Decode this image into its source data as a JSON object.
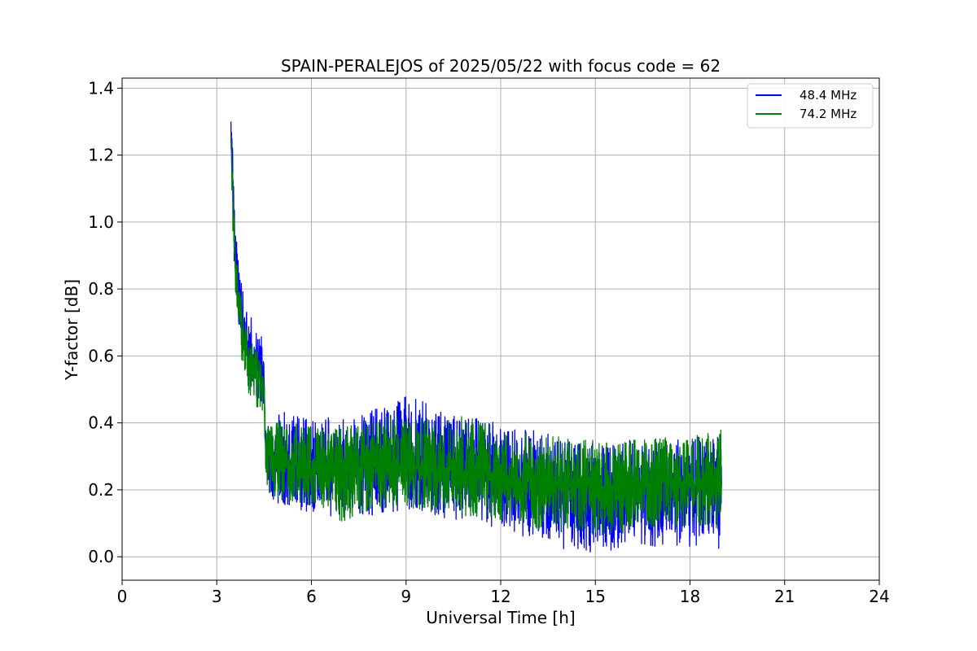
{
  "chart_data": {
    "type": "line",
    "title": "SPAIN-PERALEJOS of 2025/05/22 with focus code = 62",
    "xlabel": "Universal Time [h]",
    "ylabel": "Y-factor [dB]",
    "xlim": [
      0,
      24
    ],
    "ylim": [
      -0.07,
      1.43
    ],
    "xticks": [
      0,
      3,
      6,
      9,
      12,
      15,
      18,
      21,
      24
    ],
    "xtick_labels": [
      "0",
      "3",
      "6",
      "9",
      "12",
      "15",
      "18",
      "21",
      "24"
    ],
    "yticks": [
      0.0,
      0.2,
      0.4,
      0.6,
      0.8,
      1.0,
      1.2,
      1.4
    ],
    "ytick_labels": [
      "0.0",
      "0.2",
      "0.4",
      "0.6",
      "0.8",
      "1.0",
      "1.2",
      "1.4"
    ],
    "grid": true,
    "legend_position": "top-right",
    "series": [
      {
        "name": "48.4 MHz",
        "color": "#0000ff",
        "x": [
          3.45,
          3.5,
          3.55,
          3.6,
          3.7,
          3.8,
          3.9,
          4.0,
          4.1,
          4.2,
          4.3,
          4.4,
          4.5,
          4.55,
          4.6,
          4.8,
          5.0,
          5.5,
          6.0,
          6.5,
          7.0,
          7.5,
          8.0,
          8.5,
          9.0,
          9.5,
          10.0,
          10.5,
          11.0,
          11.5,
          12.0,
          12.5,
          13.0,
          13.5,
          14.0,
          14.5,
          15.0,
          15.5,
          16.0,
          16.5,
          17.0,
          17.5,
          18.0,
          18.5,
          19.0
        ],
        "y_mean": [
          1.3,
          1.15,
          1.0,
          0.9,
          0.8,
          0.72,
          0.66,
          0.62,
          0.6,
          0.58,
          0.56,
          0.55,
          0.54,
          0.3,
          0.29,
          0.28,
          0.28,
          0.27,
          0.27,
          0.27,
          0.26,
          0.27,
          0.27,
          0.27,
          0.28,
          0.28,
          0.27,
          0.26,
          0.26,
          0.25,
          0.24,
          0.23,
          0.22,
          0.21,
          0.2,
          0.2,
          0.19,
          0.19,
          0.2,
          0.2,
          0.2,
          0.2,
          0.2,
          0.2,
          0.21
        ],
        "y_high": [
          1.36,
          1.22,
          1.08,
          0.98,
          0.88,
          0.82,
          0.76,
          0.73,
          0.72,
          0.7,
          0.68,
          0.66,
          0.65,
          0.45,
          0.43,
          0.43,
          0.44,
          0.42,
          0.41,
          0.42,
          0.41,
          0.42,
          0.44,
          0.46,
          0.49,
          0.48,
          0.44,
          0.43,
          0.42,
          0.41,
          0.4,
          0.39,
          0.38,
          0.37,
          0.36,
          0.35,
          0.34,
          0.34,
          0.35,
          0.34,
          0.35,
          0.35,
          0.36,
          0.36,
          0.37
        ],
        "y_low": [
          1.2,
          1.02,
          0.88,
          0.78,
          0.68,
          0.6,
          0.55,
          0.5,
          0.47,
          0.46,
          0.45,
          0.44,
          0.43,
          0.22,
          0.19,
          0.17,
          0.15,
          0.14,
          0.13,
          0.12,
          0.12,
          0.13,
          0.12,
          0.13,
          0.14,
          0.13,
          0.12,
          0.11,
          0.1,
          0.09,
          0.08,
          0.06,
          0.05,
          0.04,
          0.02,
          0.01,
          0.01,
          0.02,
          0.02,
          0.03,
          0.03,
          0.03,
          0.03,
          0.04,
          0.02
        ]
      },
      {
        "name": "74.2 MHz",
        "color": "#008000",
        "x": [
          3.45,
          3.5,
          3.55,
          3.6,
          3.7,
          3.8,
          3.9,
          4.0,
          4.1,
          4.2,
          4.3,
          4.4,
          4.5,
          4.55,
          4.6,
          4.8,
          5.0,
          5.5,
          6.0,
          6.5,
          7.0,
          7.5,
          8.0,
          8.5,
          9.0,
          9.5,
          10.0,
          10.5,
          11.0,
          11.5,
          12.0,
          12.5,
          13.0,
          13.5,
          14.0,
          14.5,
          15.0,
          15.5,
          16.0,
          16.5,
          17.0,
          17.5,
          18.0,
          18.5,
          19.0
        ],
        "y_mean": [
          1.25,
          1.1,
          0.95,
          0.85,
          0.76,
          0.68,
          0.62,
          0.58,
          0.56,
          0.54,
          0.53,
          0.52,
          0.5,
          0.29,
          0.28,
          0.28,
          0.27,
          0.27,
          0.26,
          0.26,
          0.26,
          0.26,
          0.27,
          0.27,
          0.27,
          0.27,
          0.26,
          0.26,
          0.25,
          0.25,
          0.24,
          0.23,
          0.23,
          0.22,
          0.22,
          0.21,
          0.21,
          0.21,
          0.21,
          0.21,
          0.22,
          0.22,
          0.22,
          0.22,
          0.22
        ],
        "y_high": [
          1.28,
          1.16,
          1.02,
          0.92,
          0.82,
          0.76,
          0.7,
          0.66,
          0.64,
          0.63,
          0.62,
          0.61,
          0.6,
          0.42,
          0.41,
          0.41,
          0.41,
          0.4,
          0.39,
          0.39,
          0.39,
          0.4,
          0.41,
          0.42,
          0.43,
          0.42,
          0.41,
          0.41,
          0.43,
          0.4,
          0.39,
          0.38,
          0.37,
          0.36,
          0.36,
          0.35,
          0.35,
          0.34,
          0.35,
          0.35,
          0.36,
          0.35,
          0.36,
          0.37,
          0.38
        ],
        "y_low": [
          1.18,
          1.0,
          0.85,
          0.76,
          0.66,
          0.58,
          0.52,
          0.48,
          0.46,
          0.45,
          0.44,
          0.43,
          0.42,
          0.23,
          0.2,
          0.18,
          0.17,
          0.16,
          0.15,
          0.14,
          0.1,
          0.13,
          0.14,
          0.14,
          0.14,
          0.14,
          0.13,
          0.13,
          0.12,
          0.12,
          0.11,
          0.1,
          0.08,
          0.08,
          0.07,
          0.07,
          0.06,
          0.07,
          0.07,
          0.08,
          0.08,
          0.08,
          0.08,
          0.08,
          0.09
        ]
      }
    ]
  }
}
